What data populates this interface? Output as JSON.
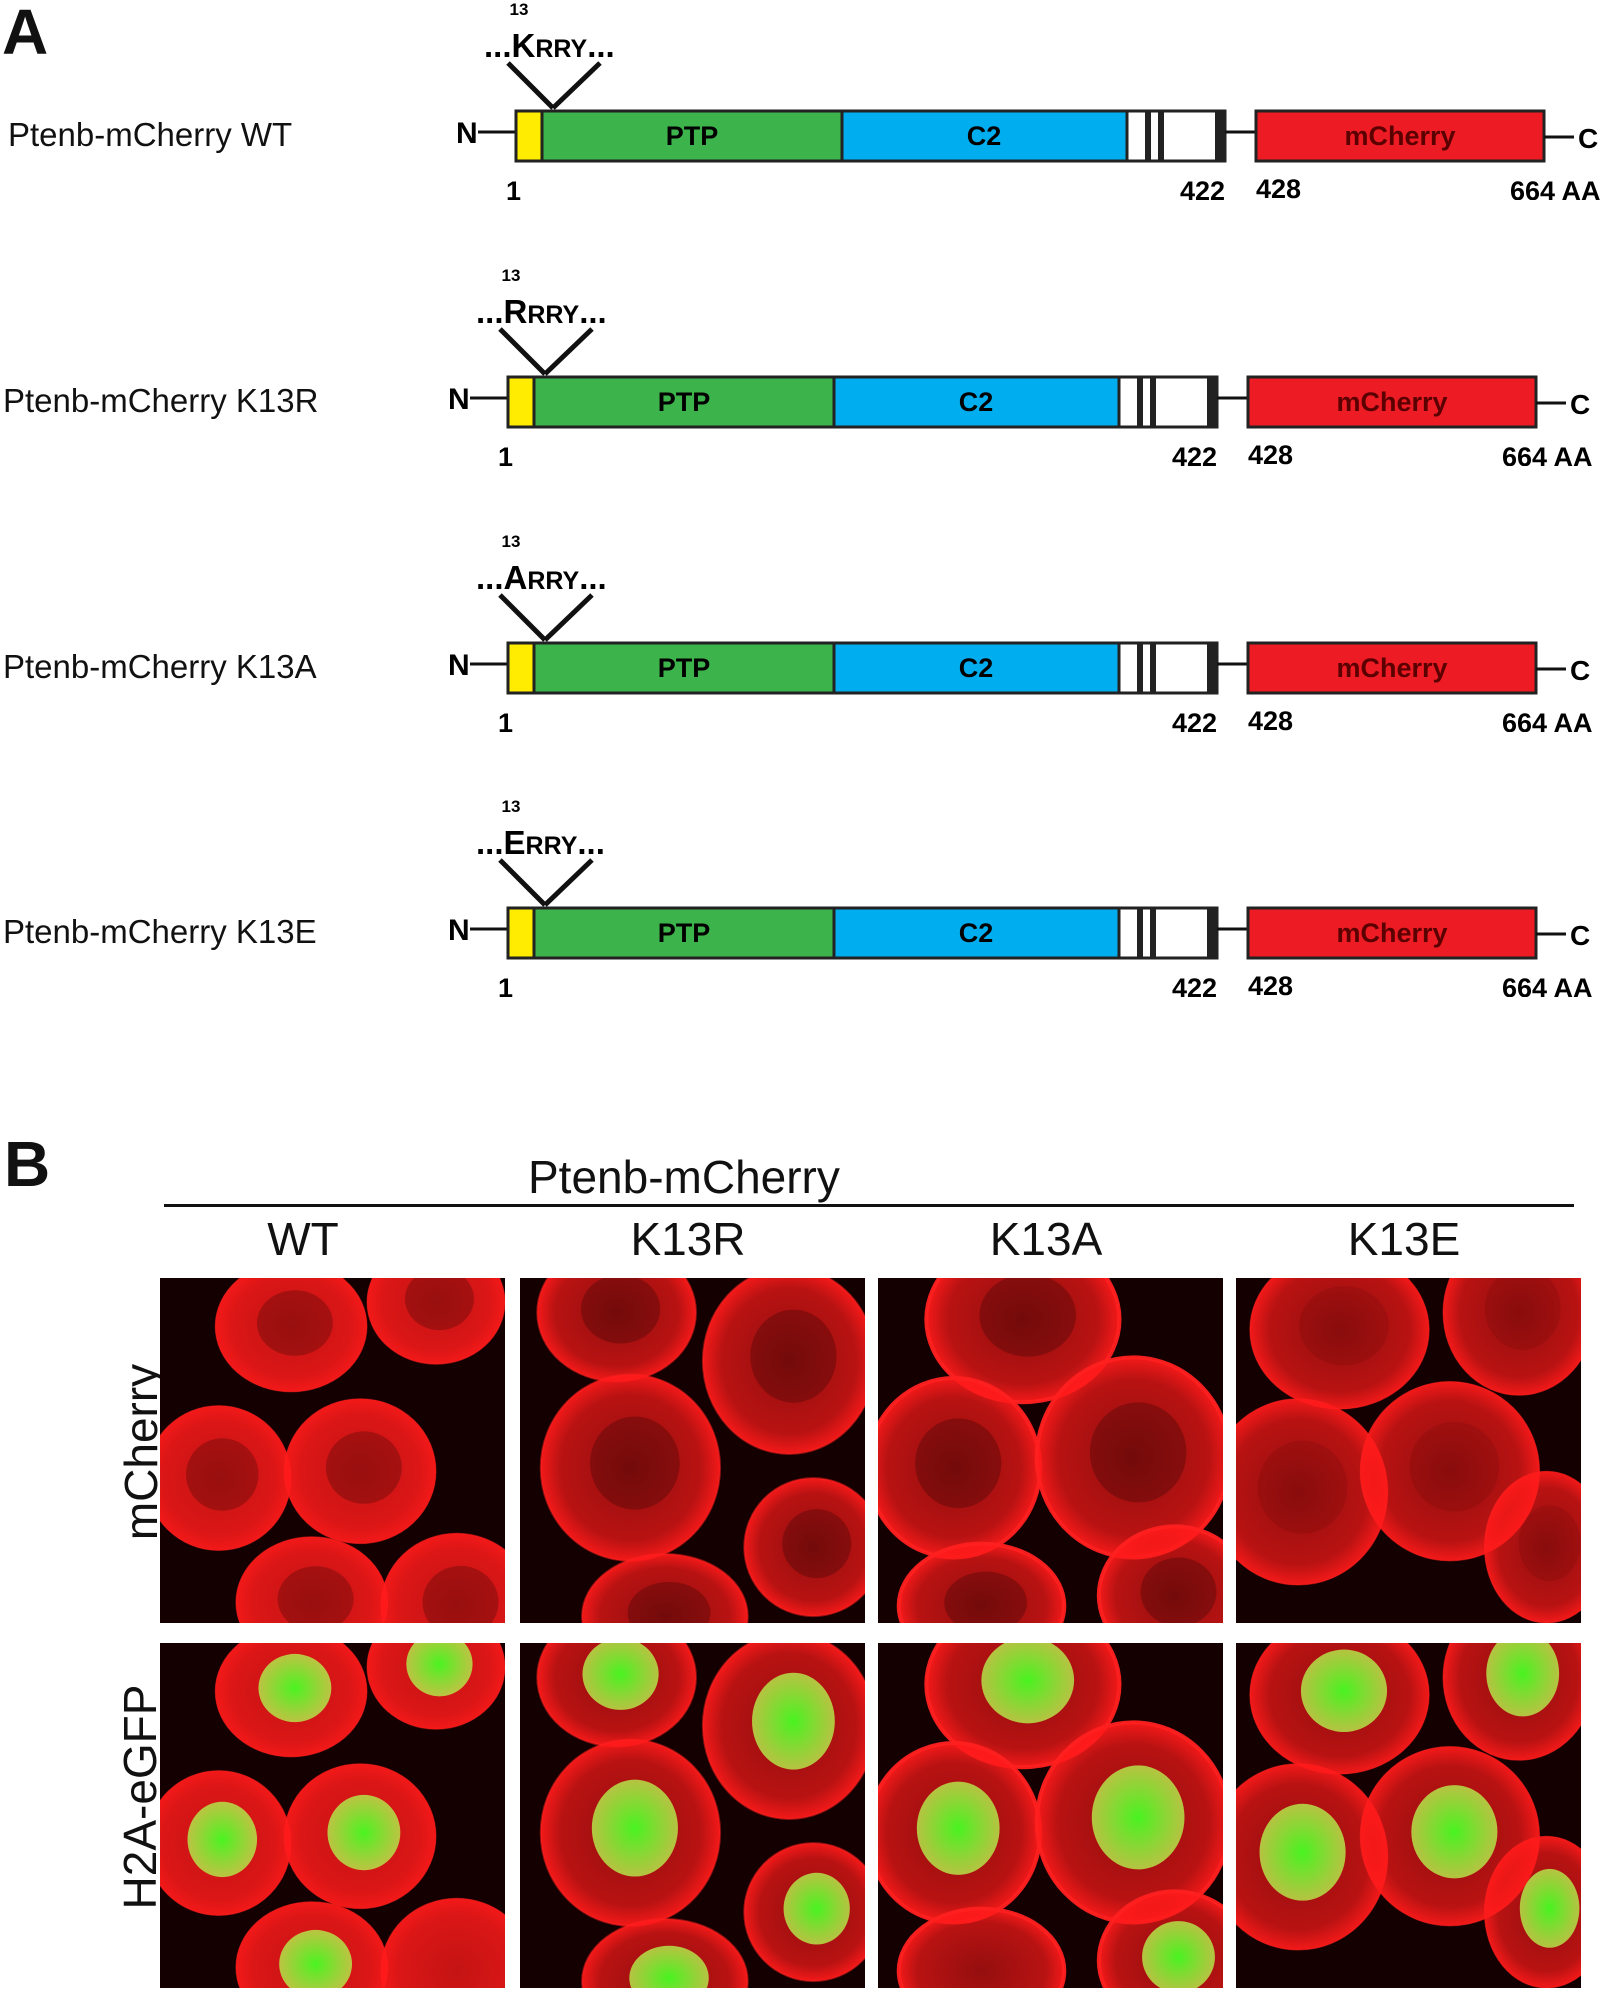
{
  "panel_a": {
    "letter": "A",
    "terminal_n": "N",
    "terminal_c": "C",
    "domains": {
      "ptp": "PTP",
      "c2": "C2",
      "mcherry": "mCherry"
    },
    "positions": {
      "start": "1",
      "mid_end": "422",
      "mid_start": "428",
      "end": "664 AA"
    },
    "residue_number": "13",
    "constructs": [
      {
        "label": "Ptenb-mCherry WT",
        "dots_left": "...",
        "residue": "K",
        "rest": "RRY",
        "dots_right": "..."
      },
      {
        "label": "Ptenb-mCherry K13R",
        "dots_left": "...",
        "residue": "R",
        "rest": "RRY",
        "dots_right": "..."
      },
      {
        "label": "Ptenb-mCherry K13A",
        "dots_left": "...",
        "residue": "A",
        "rest": "RRY",
        "dots_right": "..."
      },
      {
        "label": "Ptenb-mCherry K13E",
        "dots_left": "...",
        "residue": "E",
        "rest": "RRY",
        "dots_right": "..."
      }
    ],
    "colors": {
      "n_tag": "#ffec00",
      "ptp": "#3cb44b",
      "c2": "#00aeef",
      "mcherry": "#ed1c24"
    }
  },
  "panel_b": {
    "letter": "B",
    "title": "Ptenb-mCherry",
    "columns": [
      "WT",
      "K13R",
      "K13A",
      "K13E"
    ],
    "rows": [
      "mCherry",
      "H2A-eGFP"
    ],
    "colors": {
      "red_channel": "#ff1a1a",
      "green_channel": "#44ff22"
    }
  }
}
